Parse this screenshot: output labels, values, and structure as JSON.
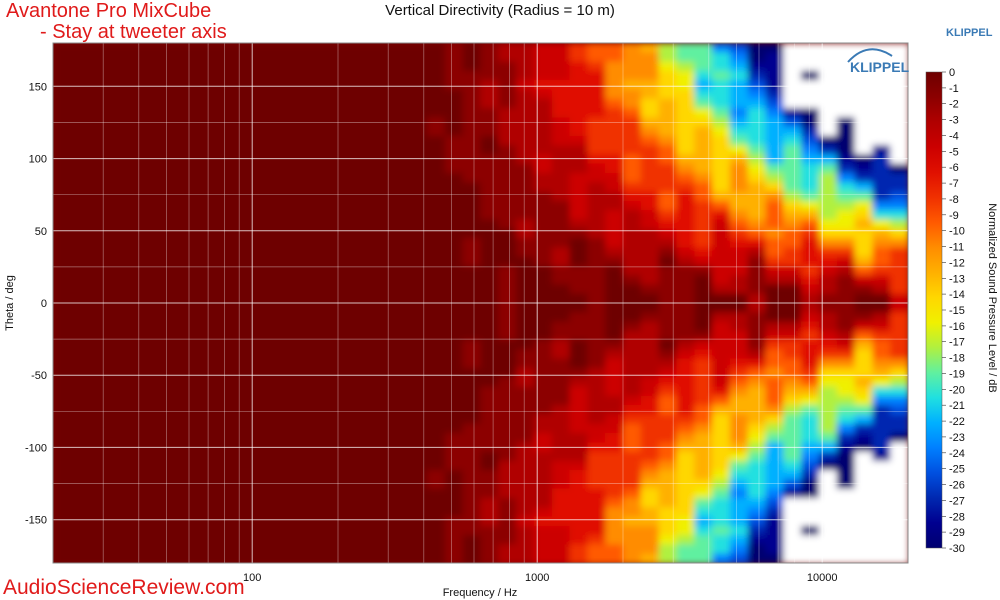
{
  "page": {
    "title_line1": "Avantone Pro MixCube",
    "title_line2": "- Stay at tweeter axis",
    "watermark": "AudioScienceReview.com",
    "brand_top": "KLIPPEL",
    "brand_logo": "KLIPPEL"
  },
  "chart_data": {
    "type": "heatmap",
    "title": "Vertical Directivity (Radius = 10 m)",
    "xlabel": "Frequency / Hz",
    "ylabel": "Theta / deg",
    "xscale": "log",
    "xlim": [
      20,
      20000
    ],
    "ylim": [
      -180,
      180
    ],
    "x_ticks": [
      100,
      1000,
      10000
    ],
    "y_ticks": [
      150,
      100,
      50,
      0,
      -50,
      -100,
      -150
    ],
    "colorbar": {
      "label": "Normalized Sound Pressure Level / dB",
      "range": [
        -30,
        0
      ],
      "ticks": [
        0,
        -1,
        -2,
        -3,
        -4,
        -5,
        -6,
        -7,
        -8,
        -9,
        -10,
        -11,
        -12,
        -13,
        -14,
        -15,
        -16,
        -17,
        -18,
        -19,
        -20,
        -21,
        -22,
        -23,
        -24,
        -25,
        -26,
        -27,
        -28,
        -29,
        -30
      ],
      "colors": [
        "#6e0000",
        "#8c0000",
        "#b00000",
        "#cc0000",
        "#e01000",
        "#f03000",
        "#ff5a00",
        "#ff8c00",
        "#ffb000",
        "#ffd700",
        "#f0f000",
        "#b0f040",
        "#60f0a0",
        "#20e0e0",
        "#00b0ff",
        "#0080ff",
        "#0050e0",
        "#0028b0",
        "#000090",
        "#000070"
      ]
    },
    "grid": true,
    "notes_levels": {
      "below_300Hz": "0 to -2 dB at all angles",
      "on_axis_0deg": "0 to -2 dB across full band",
      "above_3kHz_off_axis": "-15 to below -30 dB"
    }
  }
}
